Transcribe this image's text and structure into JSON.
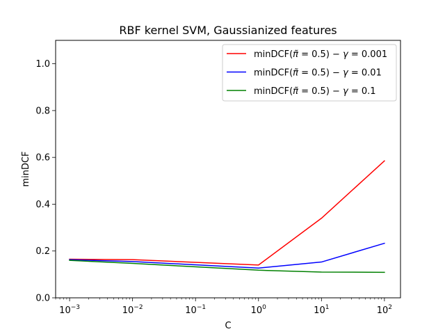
{
  "chart_data": {
    "type": "line",
    "title": "RBF kernel SVM, Gaussianized features",
    "xlabel": "C",
    "ylabel": "minDCF",
    "xscale": "log",
    "xlim": [
      0.0006,
      180
    ],
    "ylim": [
      0.0,
      1.1
    ],
    "grid": false,
    "legend_position": "top-right",
    "x": [
      0.001,
      0.01,
      1,
      10,
      100
    ],
    "x_tick_values": [
      0.001,
      0.01,
      0.1,
      1,
      10,
      100
    ],
    "x_tick_bases": [
      "10",
      "10",
      "10",
      "10",
      "10",
      "10"
    ],
    "x_tick_exponents": [
      "−3",
      "−2",
      "−1",
      "0",
      "1",
      "2"
    ],
    "y_ticks": [
      0.0,
      0.2,
      0.4,
      0.6,
      0.8,
      1.0
    ],
    "y_tick_labels": [
      "0.0",
      "0.2",
      "0.4",
      "0.6",
      "0.8",
      "1.0"
    ],
    "series": [
      {
        "name_prefix": "minDCF(",
        "name_pi": "π̃",
        "name_mid": " = 0.5) − ",
        "name_gamma": "γ",
        "name_suffix": " = 0.001",
        "color": "#ff0000",
        "values": [
          0.165,
          0.163,
          0.14,
          0.34,
          0.585
        ]
      },
      {
        "name_prefix": "minDCF(",
        "name_pi": "π̃",
        "name_mid": " = 0.5) − ",
        "name_gamma": "γ",
        "name_suffix": " = 0.01",
        "color": "#0000ff",
        "values": [
          0.163,
          0.155,
          0.127,
          0.153,
          0.233
        ]
      },
      {
        "name_prefix": "minDCF(",
        "name_pi": "π̃",
        "name_mid": " = 0.5) − ",
        "name_gamma": "γ",
        "name_suffix": " = 0.1",
        "color": "#008000",
        "values": [
          0.16,
          0.147,
          0.118,
          0.11,
          0.109
        ]
      }
    ]
  }
}
